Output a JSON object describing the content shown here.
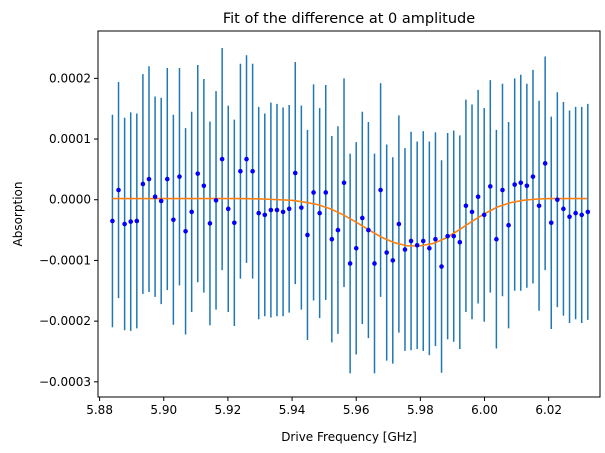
{
  "chart_data": {
    "type": "scatter",
    "title": "Fit of the difference at 0 amplitude",
    "xlabel": "Drive Frequency [GHz]",
    "ylabel": "Absorption",
    "xlim": [
      5.8795,
      6.036
    ],
    "ylim": [
      -0.000325,
      0.000278
    ],
    "x_ticks": [
      5.88,
      5.9,
      5.92,
      5.94,
      5.96,
      5.98,
      6.0,
      6.02
    ],
    "x_tick_labels": [
      "5.88",
      "5.90",
      "5.92",
      "5.94",
      "5.96",
      "5.98",
      "6.00",
      "6.02"
    ],
    "y_ticks": [
      -0.0003,
      -0.0002,
      -0.0001,
      0.0,
      0.0001,
      0.0002
    ],
    "y_tick_labels": [
      "−0.0003",
      "−0.0002",
      "−0.0001",
      "0.0000",
      "0.0001",
      "0.0002"
    ],
    "grid": false,
    "series": [
      {
        "kind": "errorbar",
        "color": "#0000ff",
        "ecolor": "#1f77b4",
        "x": [
          5.884,
          5.8859,
          5.8878,
          5.8897,
          5.8916,
          5.8935,
          5.8954,
          5.8973,
          5.8992,
          5.9011,
          5.903,
          5.9049,
          5.9068,
          5.9087,
          5.9106,
          5.9125,
          5.9144,
          5.9163,
          5.9182,
          5.9201,
          5.922,
          5.9239,
          5.9258,
          5.9277,
          5.9296,
          5.9315,
          5.9334,
          5.9353,
          5.9372,
          5.9391,
          5.941,
          5.9429,
          5.9448,
          5.9467,
          5.9486,
          5.9505,
          5.9524,
          5.9543,
          5.9562,
          5.9581,
          5.96,
          5.9619,
          5.9638,
          5.9657,
          5.9676,
          5.9695,
          5.9714,
          5.9733,
          5.9752,
          5.9771,
          5.979,
          5.9809,
          5.9828,
          5.9847,
          5.9866,
          5.9885,
          5.9904,
          5.9923,
          5.9942,
          5.9961,
          5.998,
          5.9999,
          6.0018,
          6.0037,
          6.0056,
          6.0075,
          6.0094,
          6.0113,
          6.0132,
          6.0151,
          6.017,
          6.0189,
          6.0208,
          6.0227,
          6.0246,
          6.0265,
          6.0284,
          6.0303,
          6.0322
        ],
        "y": [
          -3.5e-05,
          1.6e-05,
          -4e-05,
          -3.6e-05,
          -3.5e-05,
          2.6e-05,
          3.4e-05,
          5e-06,
          -2e-06,
          3.4e-05,
          -3.3e-05,
          3.8e-05,
          -5.2e-05,
          -2e-05,
          4.3e-05,
          2.3e-05,
          -3.9e-05,
          -1e-06,
          6.7e-05,
          -1.5e-05,
          -3.8e-05,
          4.7e-05,
          6.7e-05,
          4.7e-05,
          -2.2e-05,
          -2.5e-05,
          -1.7e-05,
          -1.7e-05,
          -2e-05,
          -1.5e-05,
          4.4e-05,
          -1.3e-05,
          -5.8e-05,
          1.2e-05,
          -2.2e-05,
          1.2e-05,
          -6.5e-05,
          -5e-05,
          2.8e-05,
          -0.000105,
          -8e-05,
          -3e-05,
          -5e-05,
          -0.000105,
          1.6e-05,
          -8.7e-05,
          -0.0001,
          -4e-05,
          -8.2e-05,
          -6.8e-05,
          -7.5e-05,
          -6.8e-05,
          -8e-05,
          -6.5e-05,
          -0.00011,
          -6e-05,
          -6e-05,
          -7e-05,
          -1e-05,
          -2e-05,
          5e-06,
          -2.5e-05,
          2.2e-05,
          -6.5e-05,
          1.6e-05,
          -4.2e-05,
          2.5e-05,
          2.8e-05,
          2.3e-05,
          3.8e-05,
          -1e-05,
          6e-05,
          -3.8e-05,
          0.0,
          -1.5e-05,
          -2.8e-05,
          -2.2e-05,
          -2.5e-05,
          -2e-05
        ],
        "yerr": [
          0.000175,
          0.000178,
          0.000175,
          0.00018,
          0.000177,
          0.000181,
          0.000186,
          0.000165,
          0.00017,
          0.000183,
          0.000173,
          0.000179,
          0.00017,
          0.000165,
          0.000179,
          0.000176,
          0.000168,
          0.00018,
          0.000183,
          0.00017,
          0.00017,
          0.000177,
          0.000171,
          0.000177,
          0.000175,
          0.000167,
          0.000177,
          0.000175,
          0.000172,
          0.000171,
          0.000183,
          0.000168,
          0.000173,
          0.000178,
          0.000173,
          0.000177,
          0.00017,
          0.000171,
          0.000172,
          0.000181,
          0.000175,
          0.000175,
          0.000178,
          0.000181,
          0.000176,
          0.000178,
          0.00017,
          0.000179,
          0.000167,
          0.00018,
          0.000171,
          0.000181,
          0.000176,
          0.000176,
          0.000175,
          0.00017,
          0.000174,
          0.000176,
          0.000175,
          0.000177,
          0.000176,
          0.000176,
          0.000175,
          0.00018,
          0.000175,
          0.00017,
          0.000175,
          0.000178,
          0.000168,
          0.000176,
          0.000173,
          0.000176,
          0.000175,
          0.000177,
          0.000176,
          0.000175,
          0.000175,
          0.000178,
          0.000178
        ]
      },
      {
        "kind": "line",
        "color": "#ff7f0e",
        "x": [
          5.884,
          5.892,
          5.9,
          5.908,
          5.916,
          5.924,
          5.932,
          5.936,
          5.94,
          5.944,
          5.948,
          5.952,
          5.956,
          5.96,
          5.964,
          5.968,
          5.972,
          5.976,
          5.98,
          5.984,
          5.988,
          5.992,
          5.996,
          6.0,
          6.004,
          6.008,
          6.012,
          6.016,
          6.02,
          6.024,
          6.028,
          6.032
        ],
        "y": [
          2e-06,
          2e-06,
          2e-06,
          2e-06,
          2e-06,
          2e-06,
          1e-06,
          0.0,
          -1e-06,
          -4e-06,
          -8e-06,
          -1.5e-05,
          -2.5e-05,
          -3.7e-05,
          -5e-05,
          -6.2e-05,
          -7.1e-05,
          -7.6e-05,
          -7.6e-05,
          -7.2e-05,
          -6.3e-05,
          -5e-05,
          -3.6e-05,
          -2.3e-05,
          -1.2e-05,
          -5e-06,
          -1e-06,
          1e-06,
          2e-06,
          2e-06,
          2e-06,
          2e-06
        ]
      }
    ]
  }
}
